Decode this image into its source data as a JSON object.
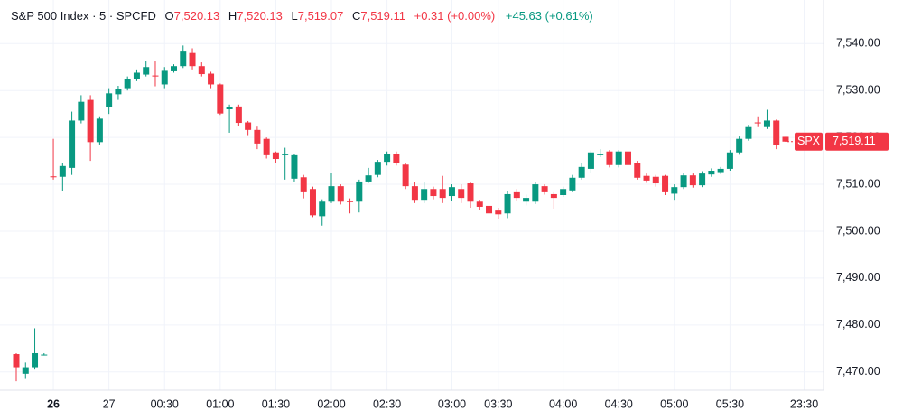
{
  "header": {
    "title": "S&P 500 Index · 5 · SPCFD",
    "ohlc": [
      {
        "key": "O",
        "value": "7,520.13"
      },
      {
        "key": "H",
        "value": "7,520.13"
      },
      {
        "key": "L",
        "value": "7,519.07"
      },
      {
        "key": "C",
        "value": "7,519.11"
      }
    ],
    "change": "+0.31 (+0.00%)",
    "day_change": "+45.63 (+0.61%)"
  },
  "chart_data": {
    "type": "candlestick",
    "up_color": "#089981",
    "down_color": "#f23645",
    "grid": true,
    "categories": [
      null,
      null,
      null,
      null,
      "26",
      null,
      null,
      null,
      null,
      null,
      "27",
      null,
      null,
      null,
      null,
      null,
      "00:30",
      null,
      null,
      null,
      null,
      null,
      "01:00",
      null,
      null,
      null,
      null,
      null,
      "01:30",
      null,
      null,
      null,
      null,
      null,
      "02:00",
      null,
      null,
      null,
      null,
      null,
      "02:30",
      null,
      null,
      null,
      null,
      null,
      null,
      "03:00",
      null,
      null,
      null,
      null,
      "03:30",
      null,
      null,
      null,
      null,
      null,
      null,
      "04:00",
      null,
      null,
      null,
      null,
      null,
      "04:30",
      null,
      null,
      null,
      null,
      null,
      "05:00",
      null,
      null,
      null,
      null,
      null,
      "05:30",
      null,
      null,
      null,
      null,
      null,
      null,
      null,
      "23:30"
    ],
    "open": [
      7473.8,
      7469.6,
      7471,
      7473.7,
      7511.7,
      7511.6,
      7513.5,
      7523.6,
      7528,
      7519,
      7526.5,
      7529.2,
      7530.5,
      7532.5,
      7533.4,
      7533.2,
      7531.3,
      7534.1,
      7535.2,
      7538,
      7535.2,
      7533.6,
      7531.3,
      7526,
      7526.6,
      7523.2,
      7521.6,
      7519.7,
      7516.8,
      7516.2,
      7511.2,
      7511.5,
      7509,
      7503.2,
      7506.3,
      7509.6,
      7506.5,
      7506.3,
      7510.6,
      7512,
      7514.8,
      7516.4,
      7514.2,
      7509.6,
      7506.7,
      7509,
      7509,
      7507.5,
      7509,
      7510.2,
      7506.3,
      7505.4,
      7504.4,
      7503.8,
      7508.3,
      7506.3,
      7506.3,
      7509.6,
      7507.9,
      7507.7,
      7508.7,
      7511.4,
      7513.3,
      7516.2,
      7517,
      7514.1,
      7517,
      7514.5,
      7511.8,
      7511.6,
      7511.8,
      7508,
      7509.4,
      7511.9,
      7509.8,
      7512.1,
      7512.6,
      7513.3,
      7516.8,
      7519.7,
      7523.2,
      7522.2,
      7523.6,
      7520.13,
      null,
      null
    ],
    "high": [
      7474,
      7472,
      7479.3,
      7474,
      7519.7,
      7514.5,
      7525.5,
      7529,
      7529,
      7524.5,
      7530.5,
      7531,
      7533,
      7534.5,
      7536.3,
      7536.2,
      7535,
      7535.6,
      7539.6,
      7539,
      7536,
      7534,
      7531.5,
      7527,
      7527,
      7523.5,
      7522.3,
      7520,
      7517,
      7517.8,
      7516.5,
      7512,
      7509.5,
      7506.8,
      7512.5,
      7510,
      7507,
      7511,
      7513.5,
      7515.2,
      7517,
      7517,
      7514.5,
      7510.5,
      7510.5,
      7509.5,
      7511.8,
      7510,
      7510,
      7510.5,
      7506.7,
      7505.8,
      7505,
      7508.5,
      7509,
      7507.8,
      7510.5,
      7510,
      7508.3,
      7509.5,
      7512,
      7514.5,
      7517.2,
      7517.5,
      7517.3,
      7517.3,
      7517.5,
      7515,
      7512.3,
      7512,
      7512,
      7510,
      7512.4,
      7512.3,
      7512.8,
      7513.4,
      7513.7,
      7517.3,
      7520.2,
      7522.7,
      7524.5,
      7525.9,
      7523.8,
      7520.13,
      null,
      null
    ],
    "low": [
      7468,
      7468.5,
      7470.5,
      7473.5,
      7511,
      7508.5,
      7512,
      7523,
      7515,
      7518.5,
      7525,
      7528,
      7530,
      7532,
      7533,
      7530.9,
      7530.5,
      7533.8,
      7534.8,
      7534.5,
      7533,
      7530.5,
      7524.8,
      7521,
      7522.5,
      7520.3,
      7517.5,
      7515.5,
      7514.6,
      7511,
      7510.6,
      7507,
      7503,
      7501.2,
      7506,
      7505.7,
      7503.8,
      7504,
      7510.3,
      7511.5,
      7514,
      7514,
      7509,
      7506,
      7506,
      7506.8,
      7506,
      7506.5,
      7506,
      7505,
      7504.6,
      7503,
      7502.6,
      7502.8,
      7506.5,
      7505.5,
      7505.8,
      7507.8,
      7504.8,
      7507.3,
      7508.3,
      7511,
      7512.5,
      7515.8,
      7513.6,
      7513.6,
      7513.7,
      7511,
      7510.3,
      7509.5,
      7507.7,
      7506.7,
      7509,
      7509.3,
      7509.4,
      7511.6,
      7512.2,
      7512.9,
      7516.3,
      7519.3,
      7522.2,
      7521.8,
      7517.5,
      7519.07,
      null,
      null
    ],
    "close": [
      7471,
      7471,
      7474,
      7473.7,
      7511.5,
      7513.9,
      7523.6,
      7527.6,
      7519,
      7524,
      7529.4,
      7530.3,
      7532.5,
      7533.8,
      7535,
      7533,
      7534.2,
      7535.2,
      7538.3,
      7535.2,
      7533.5,
      7531.3,
      7525.1,
      7526.5,
      7523.1,
      7521.6,
      7518.7,
      7516.2,
      7515.4,
      7516.4,
      7516.2,
      7508.3,
      7503.4,
      7506.3,
      7509.6,
      7506.3,
      7506.2,
      7510.6,
      7511.9,
      7514.8,
      7516.4,
      7514.5,
      7509.6,
      7506.7,
      7509,
      7507.5,
      7507.1,
      7509.4,
      7507.1,
      7506.3,
      7505.2,
      7503.8,
      7503.6,
      7507.9,
      7507.1,
      7507.1,
      7510,
      7508.3,
      7507.1,
      7509,
      7511.4,
      7513.7,
      7516.8,
      7516.4,
      7514.1,
      7517,
      7514.1,
      7511.4,
      7510.8,
      7510.2,
      7508.3,
      7509.4,
      7511.9,
      7509.8,
      7512.3,
      7512.9,
      7513.3,
      7516.8,
      7519.7,
      7522.2,
      7523,
      7523.6,
      7518.4,
      7519.11,
      null,
      null
    ],
    "ylim": [
      7466.1,
      7549.3
    ],
    "yticks": [
      {
        "value": 7470,
        "label": "7,470.00"
      },
      {
        "value": 7480,
        "label": "7,480.00"
      },
      {
        "value": 7490,
        "label": "7,490.00"
      },
      {
        "value": 7500,
        "label": "7,500.00"
      },
      {
        "value": 7510,
        "label": "7,510.00"
      },
      {
        "value": 7520,
        "label": "7,520.00"
      },
      {
        "value": 7530,
        "label": "7,530.00"
      },
      {
        "value": 7540,
        "label": "7,540.00"
      }
    ],
    "symbol_tag": "SPX",
    "last_price": {
      "value": 7519.11,
      "label": "7,519.11"
    }
  }
}
